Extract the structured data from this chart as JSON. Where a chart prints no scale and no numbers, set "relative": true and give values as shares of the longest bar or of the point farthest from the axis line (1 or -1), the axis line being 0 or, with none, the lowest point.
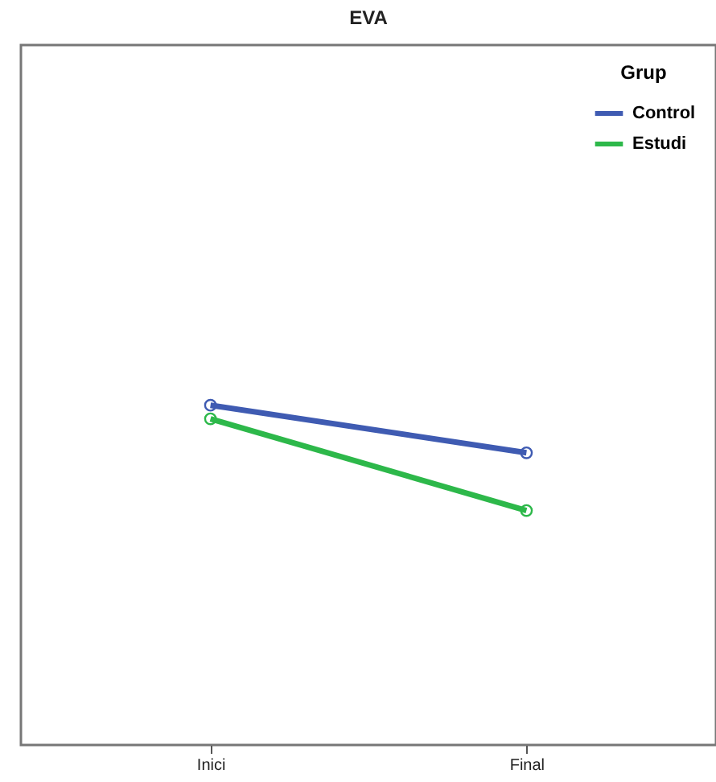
{
  "chart_data": {
    "type": "line",
    "title": "EVA",
    "legend_title": "Grup",
    "relative": true,
    "legend": "top right",
    "marker": "circle",
    "line_style": "solid",
    "categories": [
      "Inici",
      "Final"
    ],
    "series": [
      {
        "name": "Control",
        "color": "#3f5bb2",
        "values": [
          1,
          0.86
        ]
      },
      {
        "name": "Estudi",
        "color": "#2db84a",
        "values": [
          0.96,
          0.69
        ]
      }
    ]
  }
}
